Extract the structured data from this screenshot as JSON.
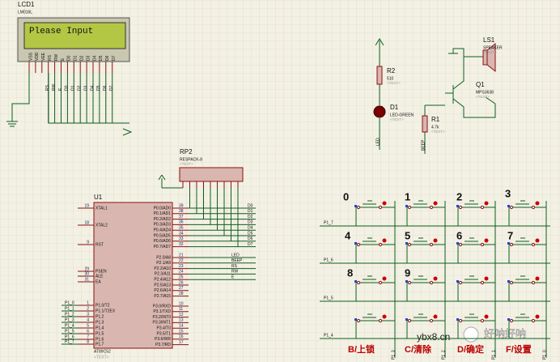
{
  "lcd": {
    "ref": "LCD1",
    "model": "LM016L",
    "display": "Please Input",
    "pins": [
      "VSS",
      "VDD",
      "VEE",
      "RS",
      "RW",
      "E",
      "D0",
      "D1",
      "D2",
      "D3",
      "D4",
      "D5",
      "D6",
      "D7"
    ],
    "net_labels": [
      "RS",
      "RW",
      "E",
      "D0",
      "D1",
      "D2",
      "D3",
      "D4",
      "D5",
      "D6",
      "D7"
    ]
  },
  "parts": [
    {
      "ref": "R2",
      "value": "510",
      "note": "<TEXT>"
    },
    {
      "ref": "D1",
      "value": "LED-GREEN",
      "note": "<TEXT>"
    },
    {
      "ref": "R1",
      "value": "4.7k",
      "note": "<TEXT>"
    },
    {
      "ref": "Q1",
      "value": "MPS3638",
      "note": "<TEXT>"
    },
    {
      "ref": "LS1",
      "value": "SPEAKER",
      "note": "<TEXT>"
    },
    {
      "ref": "RP2",
      "value": "RESPACK-8",
      "note": "<TEXT>"
    }
  ],
  "wire_labels": [
    "LED",
    "BEEP"
  ],
  "u1": {
    "ref": "U1",
    "model": "AT89C52",
    "note": "<TEXT>",
    "left_pins": [
      {
        "num": "19",
        "name": "XTAL1"
      },
      {
        "num": "18",
        "name": "XTAL2"
      },
      {
        "num": "9",
        "name": "RST"
      },
      {
        "num": "29",
        "name": "PSEN"
      },
      {
        "num": "30",
        "name": "ALE"
      },
      {
        "num": "31",
        "name": "EA"
      },
      {
        "num": "1",
        "name": "P1.0/T2"
      },
      {
        "num": "2",
        "name": "P1.1/T2EX"
      },
      {
        "num": "3",
        "name": "P1.2"
      },
      {
        "num": "4",
        "name": "P1.3"
      },
      {
        "num": "5",
        "name": "P1.4"
      },
      {
        "num": "6",
        "name": "P1.5"
      },
      {
        "num": "7",
        "name": "P1.6"
      },
      {
        "num": "8",
        "name": "P1.7"
      }
    ],
    "right_pins": [
      {
        "num": "39",
        "name": "P0.0/AD0"
      },
      {
        "num": "38",
        "name": "P0.1/AD1"
      },
      {
        "num": "37",
        "name": "P0.2/AD2"
      },
      {
        "num": "36",
        "name": "P0.3/AD3"
      },
      {
        "num": "35",
        "name": "P0.4/AD4"
      },
      {
        "num": "34",
        "name": "P0.5/AD5"
      },
      {
        "num": "33",
        "name": "P0.6/AD6"
      },
      {
        "num": "32",
        "name": "P0.7/AD7"
      },
      {
        "num": "21",
        "name": "P2.0/A8"
      },
      {
        "num": "22",
        "name": "P2.1/A9"
      },
      {
        "num": "23",
        "name": "P2.2/A10"
      },
      {
        "num": "24",
        "name": "P2.3/A11"
      },
      {
        "num": "25",
        "name": "P2.4/A12"
      },
      {
        "num": "26",
        "name": "P2.5/A13"
      },
      {
        "num": "27",
        "name": "P2.6/A14"
      },
      {
        "num": "28",
        "name": "P2.7/A15"
      },
      {
        "num": "10",
        "name": "P3.0/RXD"
      },
      {
        "num": "11",
        "name": "P3.1/TXD"
      },
      {
        "num": "12",
        "name": "P3.2/INT0"
      },
      {
        "num": "13",
        "name": "P3.3/INT1"
      },
      {
        "num": "14",
        "name": "P3.4/T0"
      },
      {
        "num": "15",
        "name": "P3.5/T1"
      },
      {
        "num": "16",
        "name": "P3.6/WR"
      },
      {
        "num": "17",
        "name": "P3.7/RD"
      }
    ],
    "p0_nets": [
      "D0",
      "D1",
      "D2",
      "D3",
      "D4",
      "D5",
      "D6",
      "D7"
    ],
    "p2_nets": [
      "LED",
      "BEEP",
      "RS",
      "RW",
      "E"
    ],
    "p1_nets": [
      "P1_0",
      "P1_1",
      "P1_2",
      "P1_3",
      "P1_4",
      "P1_5",
      "P1_6",
      "P1_7"
    ]
  },
  "keypad": {
    "keys": [
      "0",
      "1",
      "2",
      "3",
      "4",
      "5",
      "6",
      "7",
      "8",
      "9"
    ],
    "functions": [
      "B/上锁",
      "C/清除",
      "D/确定",
      "F/设置"
    ],
    "rows": [
      "P1_7",
      "P1_6",
      "P1_5",
      "P1_4"
    ],
    "cols": [
      "P1_3",
      "P1_2",
      "P1_1",
      "P1_0"
    ]
  },
  "watermark": {
    "site": "ybx8.cn",
    "name": "好呐好呐"
  }
}
